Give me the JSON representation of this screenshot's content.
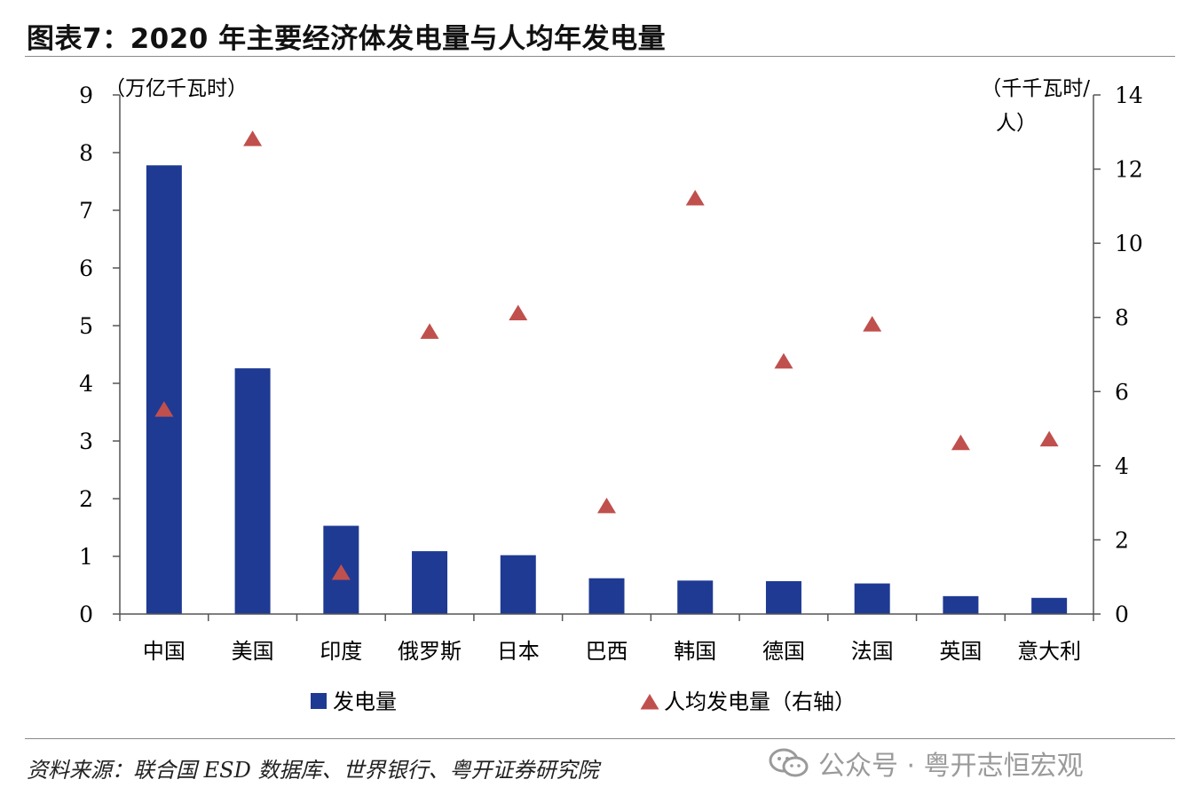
{
  "title": "图表7：2020 年主要经济体发电量与人均年发电量",
  "source": "资料来源：联合国 ESD 数据库、世界银行、粤开证券研究院",
  "watermark": "公众号 · 粤开志恒宏观",
  "colors": {
    "bar": "#1f3a93",
    "marker": "#c0504d"
  },
  "chart_data": {
    "type": "bar",
    "categories": [
      "中国",
      "美国",
      "印度",
      "俄罗斯",
      "日本",
      "巴西",
      "韩国",
      "德国",
      "法国",
      "英国",
      "意大利"
    ],
    "series": [
      {
        "name": "发电量",
        "type": "bar",
        "axis": "left",
        "values": [
          7.78,
          4.26,
          1.53,
          1.09,
          1.02,
          0.62,
          0.58,
          0.57,
          0.53,
          0.31,
          0.28
        ]
      },
      {
        "name": "人均发电量（右轴）",
        "type": "scatter",
        "marker": "triangle",
        "axis": "right",
        "values": [
          5.5,
          12.8,
          1.1,
          7.6,
          8.1,
          2.9,
          11.2,
          6.8,
          7.8,
          4.6,
          4.7
        ]
      }
    ],
    "ylabel_left": "（万亿千瓦时）",
    "ylabel_right": "（千千瓦时/人）",
    "ylim_left": [
      0,
      9
    ],
    "ylim_right": [
      0,
      14
    ],
    "yticks_left": [
      0,
      1,
      2,
      3,
      4,
      5,
      6,
      7,
      8,
      9
    ],
    "yticks_right": [
      0,
      2,
      4,
      6,
      8,
      10,
      12,
      14
    ],
    "legend": [
      "发电量",
      "人均发电量（右轴）"
    ],
    "legend_position": "bottom",
    "grid": false
  }
}
